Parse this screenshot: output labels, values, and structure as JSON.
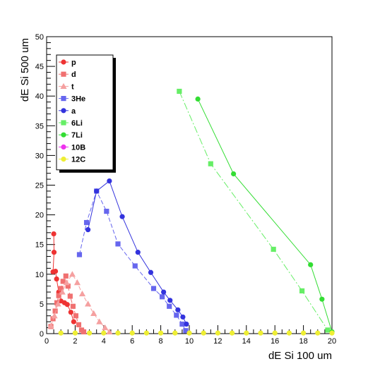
{
  "chart_data": {
    "type": "scatter",
    "title": "",
    "xlabel": "dE Si 100 um",
    "ylabel": "dE Si 500 um",
    "xlim": [
      0,
      20
    ],
    "ylim": [
      0,
      50
    ],
    "x_ticks": [
      "0",
      "2",
      "4",
      "6",
      "8",
      "10",
      "12",
      "14",
      "16",
      "18",
      "20"
    ],
    "y_ticks": [
      "0",
      "5",
      "10",
      "15",
      "20",
      "25",
      "30",
      "35",
      "40",
      "45",
      "50"
    ],
    "grid": false,
    "legend_position": "top-left",
    "series": [
      {
        "name": "p",
        "marker": "circle",
        "color": "#ee3333",
        "dash": "solid",
        "points": [
          [
            0.5,
            16.8
          ],
          [
            0.52,
            13.7
          ],
          [
            0.45,
            10.4
          ],
          [
            0.62,
            10.5
          ],
          [
            0.7,
            9.2
          ],
          [
            0.85,
            7.0
          ],
          [
            1.0,
            5.5
          ],
          [
            1.25,
            5.2
          ],
          [
            1.45,
            4.9
          ],
          [
            1.7,
            3.6
          ],
          [
            1.9,
            2.0
          ]
        ]
      },
      {
        "name": "d",
        "marker": "square",
        "color": "#f07070",
        "dash": "dashed",
        "points": [
          [
            0.3,
            1.2
          ],
          [
            0.45,
            2.5
          ],
          [
            0.6,
            3.8
          ],
          [
            0.72,
            5.2
          ],
          [
            0.85,
            6.4
          ],
          [
            1.0,
            7.6
          ],
          [
            1.15,
            8.8
          ],
          [
            1.35,
            9.7
          ],
          [
            1.5,
            8.0
          ],
          [
            1.65,
            6.3
          ],
          [
            1.85,
            4.6
          ],
          [
            2.05,
            3.0
          ],
          [
            2.25,
            1.5
          ],
          [
            2.45,
            0.6
          ],
          [
            2.6,
            0.3
          ]
        ]
      },
      {
        "name": "t",
        "marker": "triangle",
        "color": "#f5a0a0",
        "dash": "dashed",
        "points": [
          [
            0.3,
            1.3
          ],
          [
            0.55,
            3.0
          ],
          [
            0.8,
            5.0
          ],
          [
            1.1,
            7.0
          ],
          [
            1.4,
            8.6
          ],
          [
            1.8,
            10.0
          ],
          [
            2.15,
            8.6
          ],
          [
            2.5,
            6.7
          ],
          [
            2.9,
            5.0
          ],
          [
            3.3,
            3.4
          ],
          [
            3.7,
            2.0
          ],
          [
            4.1,
            1.0
          ],
          [
            4.4,
            0.3
          ]
        ]
      },
      {
        "name": "3He",
        "marker": "square",
        "color": "#6666ee",
        "dash": "dashed",
        "points": [
          [
            2.3,
            13.3
          ],
          [
            2.8,
            18.7
          ],
          [
            3.5,
            24.0
          ],
          [
            4.2,
            20.6
          ],
          [
            5.0,
            15.1
          ],
          [
            6.2,
            11.4
          ],
          [
            7.5,
            7.6
          ],
          [
            8.1,
            6.2
          ],
          [
            8.6,
            4.6
          ],
          [
            9.1,
            3.1
          ],
          [
            9.5,
            1.6
          ],
          [
            9.75,
            0.5
          ]
        ]
      },
      {
        "name": "a",
        "marker": "circle",
        "color": "#3333dd",
        "dash": "solid",
        "points": [
          [
            2.9,
            17.5
          ],
          [
            3.5,
            24.0
          ],
          [
            4.4,
            25.7
          ],
          [
            5.3,
            19.7
          ],
          [
            6.4,
            13.7
          ],
          [
            7.3,
            10.3
          ],
          [
            8.2,
            7.0
          ],
          [
            8.65,
            5.6
          ],
          [
            9.2,
            4.0
          ],
          [
            9.55,
            2.8
          ],
          [
            9.8,
            1.6
          ]
        ]
      },
      {
        "name": "6Li",
        "marker": "square",
        "color": "#66ee66",
        "dash": "dashdot",
        "points": [
          [
            9.3,
            40.8
          ],
          [
            11.5,
            28.6
          ],
          [
            15.9,
            14.2
          ],
          [
            17.9,
            7.2
          ],
          [
            19.7,
            0.6
          ]
        ]
      },
      {
        "name": "7Li",
        "marker": "circle",
        "color": "#33dd33",
        "dash": "solid",
        "points": [
          [
            10.6,
            39.5
          ],
          [
            13.1,
            26.9
          ],
          [
            18.5,
            11.6
          ],
          [
            19.3,
            5.8
          ],
          [
            20.0,
            0.3
          ]
        ]
      },
      {
        "name": "10B",
        "marker": "circle",
        "color": "#ee33ee",
        "dash": "solid",
        "points": []
      },
      {
        "name": "12C",
        "marker": "circle",
        "color": "#eeee33",
        "dash": "solid",
        "points": [
          [
            1.0,
            0.1
          ],
          [
            2.0,
            0.1
          ],
          [
            3.0,
            0.1
          ],
          [
            4.0,
            0.1
          ],
          [
            5.0,
            0.1
          ],
          [
            6.0,
            0.1
          ],
          [
            7.0,
            0.1
          ],
          [
            8.0,
            0.1
          ],
          [
            9.0,
            0.1
          ],
          [
            10.0,
            0.1
          ],
          [
            11.0,
            0.1
          ],
          [
            12.0,
            0.1
          ],
          [
            13.0,
            0.1
          ],
          [
            14.0,
            0.1
          ],
          [
            15.0,
            0.1
          ],
          [
            16.0,
            0.1
          ],
          [
            17.0,
            0.1
          ],
          [
            18.0,
            0.1
          ],
          [
            19.0,
            0.1
          ],
          [
            20.0,
            0.1
          ]
        ]
      }
    ]
  }
}
